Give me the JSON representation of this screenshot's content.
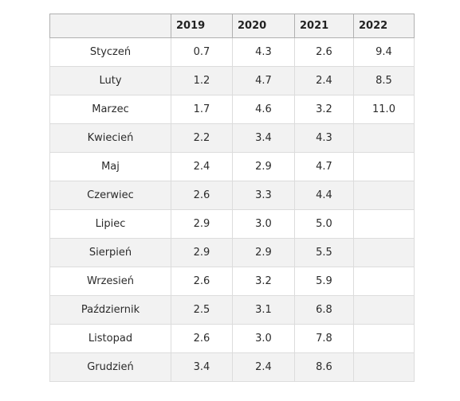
{
  "table": {
    "headers": [
      "",
      "2019",
      "2020",
      "2021",
      "2022"
    ],
    "rows": [
      {
        "month": "Styczeń",
        "y2019": "0.7",
        "y2020": "4.3",
        "y2021": "2.6",
        "y2022": "9.4"
      },
      {
        "month": "Luty",
        "y2019": "1.2",
        "y2020": "4.7",
        "y2021": "2.4",
        "y2022": "8.5"
      },
      {
        "month": "Marzec",
        "y2019": "1.7",
        "y2020": "4.6",
        "y2021": "3.2",
        "y2022": "11.0"
      },
      {
        "month": "Kwiecień",
        "y2019": "2.2",
        "y2020": "3.4",
        "y2021": "4.3",
        "y2022": ""
      },
      {
        "month": "Maj",
        "y2019": "2.4",
        "y2020": "2.9",
        "y2021": "4.7",
        "y2022": ""
      },
      {
        "month": "Czerwiec",
        "y2019": "2.6",
        "y2020": "3.3",
        "y2021": "4.4",
        "y2022": ""
      },
      {
        "month": "Lipiec",
        "y2019": "2.9",
        "y2020": "3.0",
        "y2021": "5.0",
        "y2022": ""
      },
      {
        "month": "Sierpień",
        "y2019": "2.9",
        "y2020": "2.9",
        "y2021": "5.5",
        "y2022": ""
      },
      {
        "month": "Wrzesień",
        "y2019": "2.6",
        "y2020": "3.2",
        "y2021": "5.9",
        "y2022": ""
      },
      {
        "month": "Październik",
        "y2019": "2.5",
        "y2020": "3.1",
        "y2021": "6.8",
        "y2022": ""
      },
      {
        "month": "Listopad",
        "y2019": "2.6",
        "y2020": "3.0",
        "y2021": "7.8",
        "y2022": ""
      },
      {
        "month": "Grudzień",
        "y2019": "3.4",
        "y2020": "2.4",
        "y2021": "8.6",
        "y2022": ""
      }
    ]
  }
}
